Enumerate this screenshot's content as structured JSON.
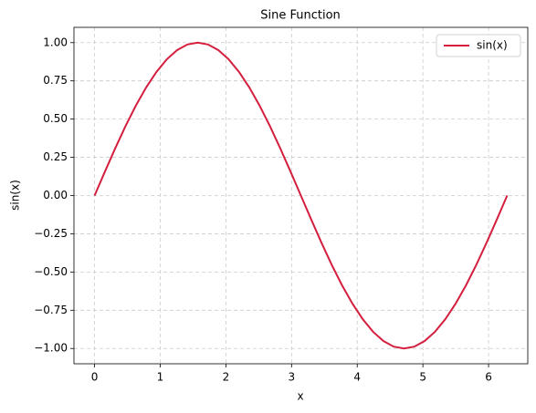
{
  "chart_data": {
    "type": "line",
    "title": "Sine Function",
    "x_label": "x",
    "y_label": "sin(x)",
    "x": [
      0,
      0.1571,
      0.3142,
      0.4712,
      0.6283,
      0.7854,
      0.9425,
      1.0996,
      1.2566,
      1.4137,
      1.5708,
      1.7279,
      1.885,
      2.042,
      2.1991,
      2.3562,
      2.5133,
      2.6704,
      2.8274,
      2.9845,
      3.1416,
      3.2987,
      3.4558,
      3.6128,
      3.7699,
      3.927,
      4.0841,
      4.2412,
      4.3982,
      4.5553,
      4.7124,
      4.8695,
      5.0265,
      5.1836,
      5.3407,
      5.4978,
      5.6549,
      5.8119,
      5.969,
      6.1261,
      6.2832
    ],
    "series": [
      {
        "name": "sin(x)",
        "color": "#d41f3e",
        "values": [
          0,
          0.156,
          0.309,
          0.454,
          0.588,
          0.707,
          0.809,
          0.891,
          0.951,
          0.988,
          1,
          0.988,
          0.951,
          0.891,
          0.809,
          0.707,
          0.588,
          0.454,
          0.309,
          0.156,
          0,
          -0.156,
          -0.309,
          -0.454,
          -0.588,
          -0.707,
          -0.809,
          -0.891,
          -0.951,
          -0.988,
          -1,
          -0.988,
          -0.951,
          -0.891,
          -0.809,
          -0.707,
          -0.588,
          -0.454,
          -0.309,
          -0.156,
          0
        ]
      }
    ],
    "xlim": [
      -0.314,
      6.597
    ],
    "ylim": [
      -1.1,
      1.1
    ],
    "xticks": [
      0,
      1,
      2,
      3,
      4,
      5,
      6
    ],
    "yticks": [
      {
        "value": -1,
        "label": "−1.00"
      },
      {
        "value": -0.75,
        "label": "−0.75"
      },
      {
        "value": -0.5,
        "label": "−0.50"
      },
      {
        "value": -0.25,
        "label": "−0.25"
      },
      {
        "value": 0,
        "label": "0.00"
      },
      {
        "value": 0.25,
        "label": "0.25"
      },
      {
        "value": 0.5,
        "label": "0.50"
      },
      {
        "value": 0.75,
        "label": "0.75"
      },
      {
        "value": 1,
        "label": "1.00"
      }
    ],
    "grid": true,
    "legend": "upper right"
  }
}
